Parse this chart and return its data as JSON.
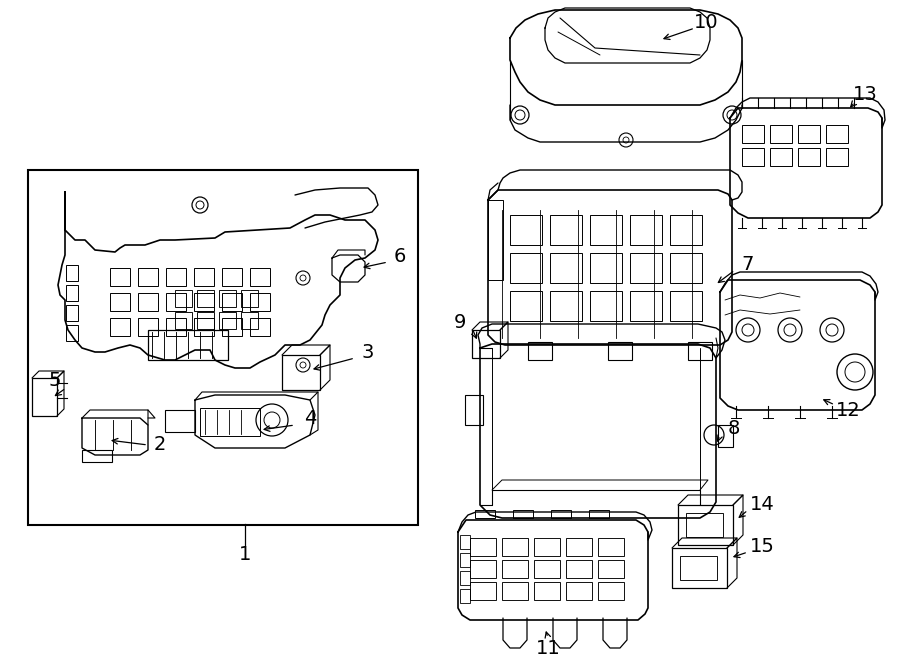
{
  "bg": "#ffffff",
  "lc": "#000000",
  "lw": 1.1,
  "fig_w": 9.0,
  "fig_h": 6.61,
  "dpi": 100,
  "xlim": [
    0,
    900
  ],
  "ylim": [
    0,
    661
  ]
}
